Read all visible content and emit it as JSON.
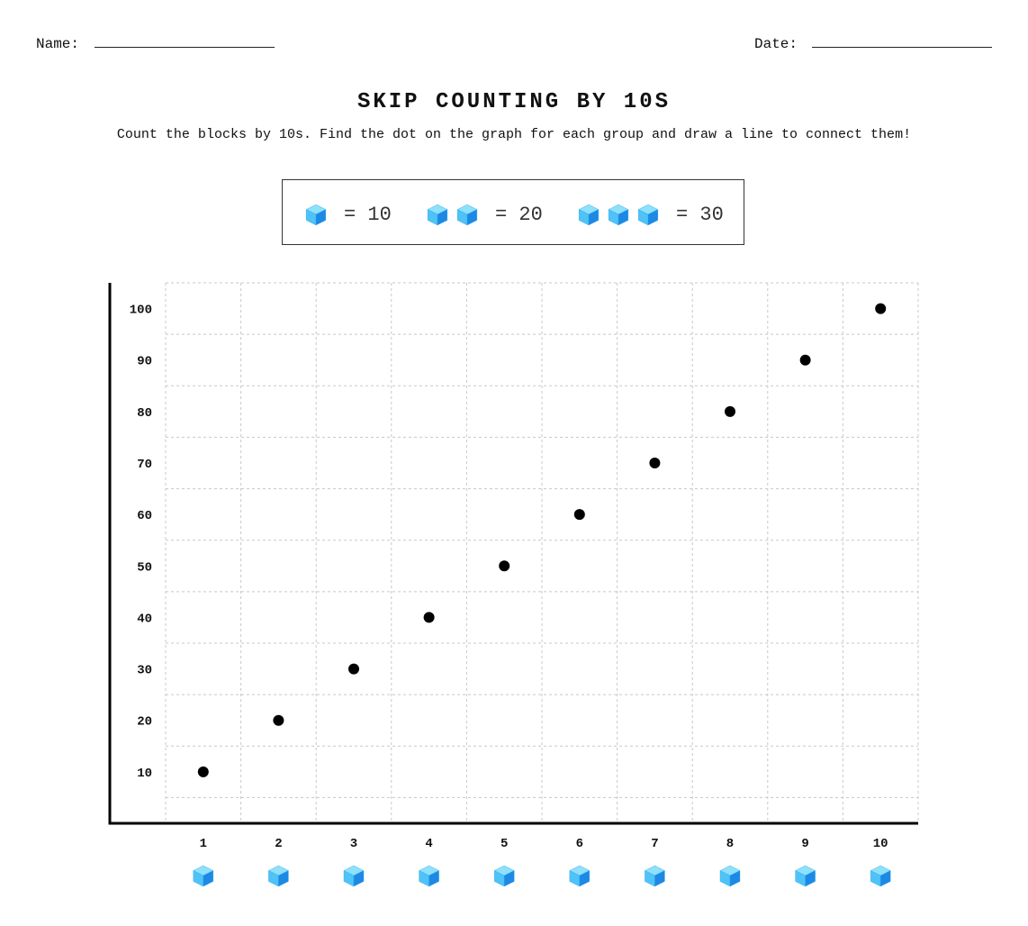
{
  "header": {
    "name_label": "Name:",
    "date_label": "Date:"
  },
  "title": "SKIP COUNTING BY 10S",
  "instructions": "Count the blocks by 10s. Find the dot on the graph for each group and draw a line to connect them!",
  "legend": [
    {
      "cubes": 1,
      "text": "= 10"
    },
    {
      "cubes": 2,
      "text": "= 20"
    },
    {
      "cubes": 3,
      "text": "= 30"
    }
  ],
  "icons": {
    "block": "blue-cube-icon"
  },
  "colors": {
    "cube_light": "#8ee0fb",
    "cube_mid": "#4fc3f7",
    "cube_dark": "#1e88e5",
    "dot": "#000000",
    "grid": "#c8c8c8"
  },
  "chart_data": {
    "type": "scatter",
    "x": [
      1,
      2,
      3,
      4,
      5,
      6,
      7,
      8,
      9,
      10
    ],
    "y": [
      10,
      20,
      30,
      40,
      50,
      60,
      70,
      80,
      90,
      100
    ],
    "xticks": [
      "1",
      "2",
      "3",
      "4",
      "5",
      "6",
      "7",
      "8",
      "9",
      "10"
    ],
    "yticks": [
      "10",
      "20",
      "30",
      "40",
      "50",
      "60",
      "70",
      "80",
      "90",
      "100"
    ],
    "xlim": [
      0.5,
      10.5
    ],
    "ylim": [
      0,
      105
    ],
    "grid": true,
    "x_tick_icon": "blue-cube-icon"
  }
}
